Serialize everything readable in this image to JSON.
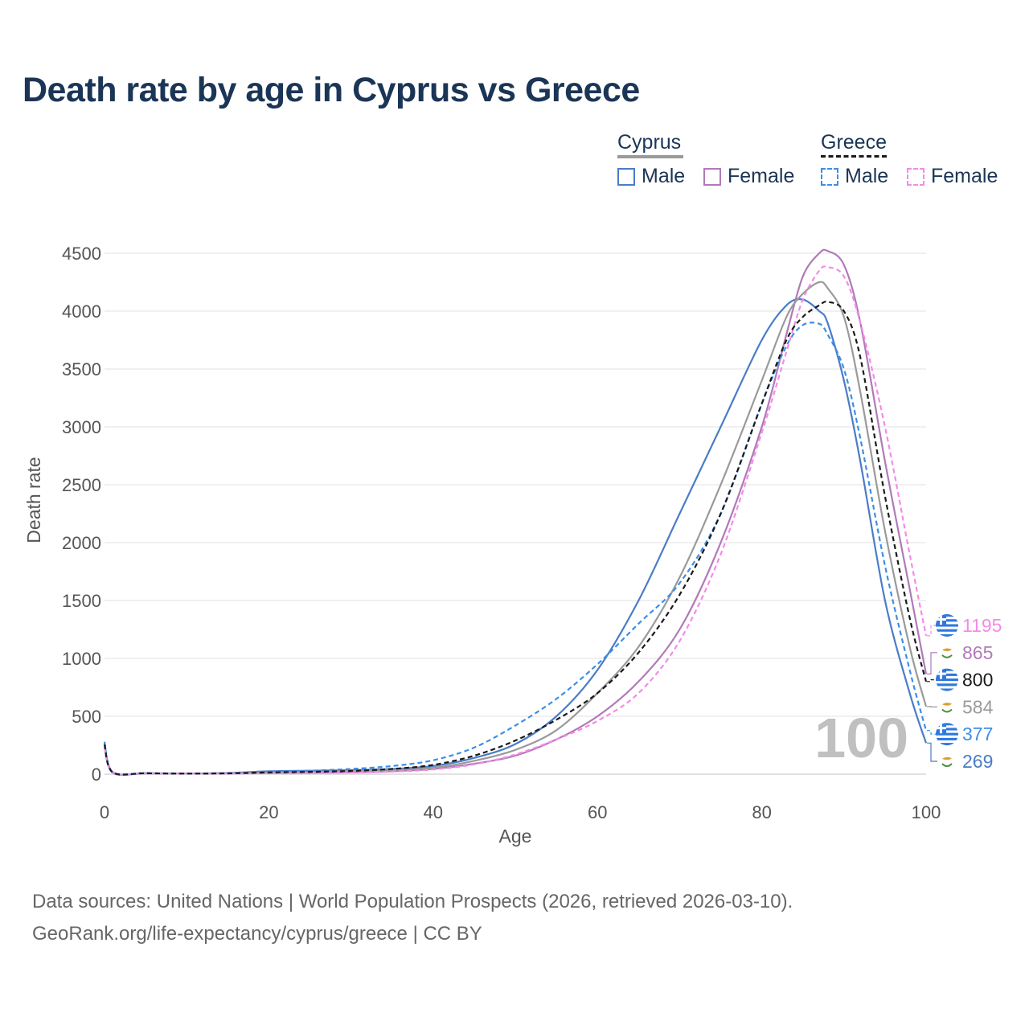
{
  "title": "Death rate by age in Cyprus vs Greece",
  "legend": {
    "cyprus": {
      "label": "Cyprus",
      "male": "Male",
      "female": "Female"
    },
    "greece": {
      "label": "Greece",
      "male": "Male",
      "female": "Female"
    }
  },
  "footer": {
    "line1": "Data sources: United Nations | World Population Prospects (2026, retrieved 2026-03-10).",
    "line2": "GeoRank.org/life-expectancy/cyprus/greece | CC BY"
  },
  "year_watermark": "100",
  "colors": {
    "cyprus_male": "#4a7cc7",
    "cyprus_female": "#b07ab8",
    "cyprus_total": "#9a9a9a",
    "greece_male": "#3d8ee8",
    "greece_female": "#f58ae8",
    "greece_total": "#1a1a1a",
    "title": "#1b3556"
  },
  "chart_data": {
    "type": "line",
    "xlabel": "Age",
    "ylabel": "Death rate",
    "xlim": [
      0,
      100
    ],
    "ylim": [
      0,
      4500
    ],
    "xticks": [
      0,
      20,
      40,
      60,
      80,
      100
    ],
    "yticks": [
      0,
      500,
      1000,
      1500,
      2000,
      2500,
      3000,
      3500,
      4000,
      4500
    ],
    "grid": true,
    "x": [
      0,
      1,
      5,
      10,
      15,
      20,
      25,
      30,
      35,
      40,
      45,
      50,
      55,
      60,
      65,
      70,
      75,
      80,
      83,
      85,
      87,
      88,
      90,
      92,
      95,
      98,
      100
    ],
    "series": [
      {
        "name": "Cyprus Male",
        "key": "cyprus_male",
        "dash": false,
        "values": [
          270,
          15,
          8,
          5,
          10,
          25,
          30,
          35,
          45,
          70,
          140,
          260,
          500,
          900,
          1500,
          2250,
          3000,
          3750,
          4050,
          4100,
          4000,
          3900,
          3400,
          2700,
          1500,
          700,
          269
        ],
        "end_label": "269",
        "flag": "cy"
      },
      {
        "name": "Cyprus Female",
        "key": "cyprus_female",
        "dash": false,
        "values": [
          250,
          12,
          6,
          4,
          6,
          10,
          12,
          16,
          25,
          45,
          90,
          160,
          300,
          500,
          800,
          1250,
          2000,
          3000,
          3800,
          4300,
          4500,
          4520,
          4400,
          3900,
          2700,
          1600,
          865
        ],
        "end_label": "865",
        "flag": "cy"
      },
      {
        "name": "Cyprus Total",
        "key": "cyprus_total",
        "dash": false,
        "values": [
          260,
          14,
          7,
          5,
          8,
          18,
          22,
          27,
          35,
          55,
          115,
          210,
          380,
          700,
          1100,
          1700,
          2500,
          3400,
          3950,
          4150,
          4250,
          4200,
          3950,
          3300,
          2100,
          1100,
          584
        ],
        "end_label": "584",
        "flag": "cy"
      },
      {
        "name": "Greece Male",
        "key": "greece_male",
        "dash": true,
        "values": [
          280,
          18,
          10,
          6,
          8,
          20,
          30,
          45,
          70,
          120,
          230,
          420,
          650,
          950,
          1300,
          1650,
          2250,
          3200,
          3700,
          3880,
          3890,
          3800,
          3500,
          2900,
          1800,
          900,
          377
        ],
        "end_label": "377",
        "flag": "gr"
      },
      {
        "name": "Greece Female",
        "key": "greece_female",
        "dash": true,
        "values": [
          230,
          14,
          7,
          4,
          5,
          8,
          10,
          14,
          22,
          40,
          85,
          170,
          300,
          460,
          700,
          1150,
          1900,
          2950,
          3650,
          4100,
          4350,
          4380,
          4300,
          3900,
          3000,
          1900,
          1195
        ],
        "end_label": "1195",
        "flag": "gr"
      },
      {
        "name": "Greece Total",
        "key": "greece_total",
        "dash": true,
        "values": [
          255,
          16,
          8,
          5,
          7,
          15,
          20,
          28,
          45,
          80,
          160,
          290,
          470,
          700,
          1050,
          1550,
          2250,
          3200,
          3750,
          3950,
          4050,
          4080,
          4000,
          3600,
          2400,
          1350,
          800
        ],
        "end_label": "800",
        "flag": "gr"
      }
    ]
  }
}
